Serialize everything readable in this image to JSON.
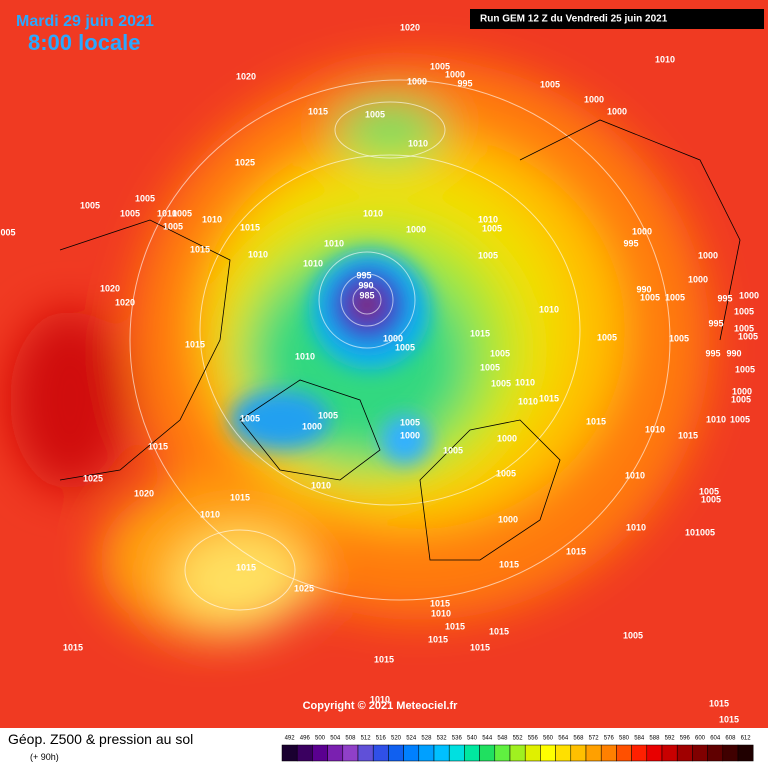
{
  "header": {
    "date": "Mardi 29 juin 2021",
    "time": "8:00 locale",
    "run": "Run GEM 12 Z du Vendredi 25 juin 2021"
  },
  "map": {
    "pressure_labels": [
      "1020",
      "1010",
      "1005",
      "1000",
      "995",
      "1000",
      "1005",
      "1020",
      "1000",
      "1000",
      "1015",
      "1005",
      "1010",
      "1025",
      "1005",
      "1005",
      "1005",
      "1010",
      "1005",
      "1010",
      "1005",
      "005",
      "1015",
      "1010",
      "1010",
      "1000",
      "1005",
      "1000",
      "995",
      "1015",
      "1010",
      "1010",
      "1005",
      "1010",
      "1000",
      "995",
      "990",
      "985",
      "1000",
      "1020",
      "990",
      "1005",
      "1005",
      "995",
      "1000",
      "1020",
      "1010",
      "1005",
      "995",
      "1005",
      "1015",
      "1000",
      "1005",
      "1015",
      "1005",
      "1005",
      "1005",
      "1010",
      "1005",
      "995",
      "990",
      "1005",
      "1005",
      "1010",
      "1005",
      "1010",
      "1015",
      "1000",
      "1005",
      "1005",
      "1005",
      "1000",
      "1005",
      "1000",
      "1015",
      "1010",
      "1015",
      "1010",
      "1005",
      "1000",
      "1005",
      "1015",
      "1025",
      "1005",
      "1010",
      "1010",
      "1005",
      "1005",
      "1020",
      "1015",
      "1010",
      "1000",
      "1010",
      "101005",
      "1015",
      "1015",
      "1015",
      "1025",
      "1015",
      "1010",
      "1015",
      "1015",
      "1005",
      "1015",
      "1015",
      "1015",
      "1015",
      "1010",
      "1015",
      "1015"
    ],
    "copyright": "Copyright © 2021 Meteociel.fr"
  },
  "legend": {
    "title": "Géop. Z500 & pression au sol",
    "lead": "(+ 90h)",
    "scale": [
      "492",
      "496",
      "500",
      "504",
      "508",
      "512",
      "516",
      "520",
      "524",
      "528",
      "532",
      "536",
      "540",
      "544",
      "548",
      "552",
      "556",
      "560",
      "564",
      "568",
      "572",
      "576",
      "580",
      "584",
      "588",
      "592",
      "596",
      "600",
      "604",
      "608",
      "612"
    ],
    "colors": [
      "#1a0030",
      "#3a0060",
      "#5a0090",
      "#7a20b0",
      "#9040c8",
      "#6050d8",
      "#3050e8",
      "#1060f0",
      "#0080ff",
      "#00a0ff",
      "#00c0ff",
      "#00e0e0",
      "#00e8a0",
      "#20e060",
      "#60f040",
      "#a0f020",
      "#e0f000",
      "#ffff00",
      "#ffe000",
      "#ffc000",
      "#ffa000",
      "#ff8000",
      "#ff5000",
      "#ff2000",
      "#e80000",
      "#c80000",
      "#a00000",
      "#800000",
      "#600000",
      "#400000",
      "#200000"
    ]
  }
}
